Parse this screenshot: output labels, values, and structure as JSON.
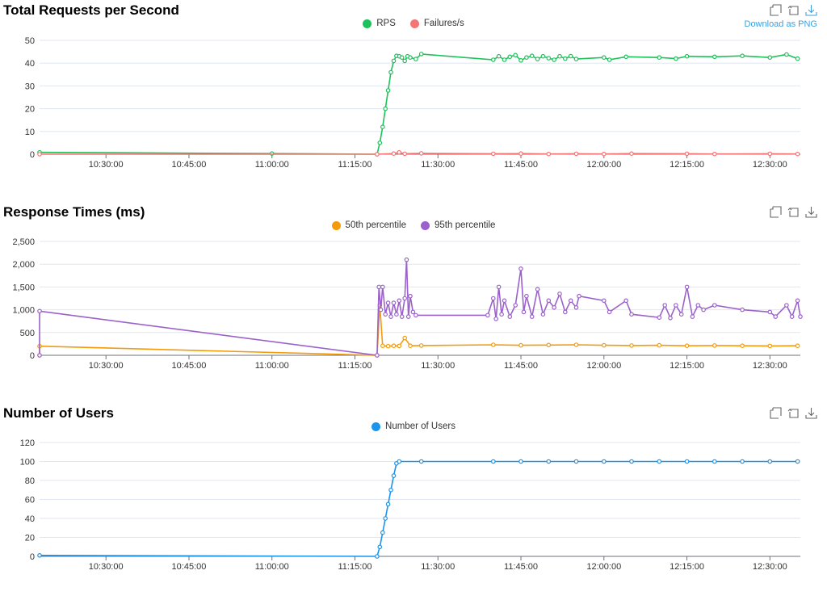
{
  "charts": [
    {
      "title": "Total Requests per Second",
      "download_label": "Download as PNG"
    },
    {
      "title": "Response Times (ms)"
    },
    {
      "title": "Number of Users"
    }
  ],
  "toolbox_icons": [
    "zoom-icon",
    "restore-icon",
    "download-icon"
  ],
  "chart_data": [
    {
      "type": "line",
      "title": "Total Requests per Second",
      "x_ticks": [
        "10:30:00",
        "10:45:00",
        "11:00:00",
        "11:15:00",
        "11:30:00",
        "11:45:00",
        "12:00:00",
        "12:15:00",
        "12:30:00"
      ],
      "y_ticks": [
        "0",
        "10",
        "20",
        "30",
        "40",
        "50"
      ],
      "ylim": [
        0,
        50
      ],
      "xlim": [
        "10:18:00",
        "12:35:30"
      ],
      "grid": true,
      "legend_position": "top-center",
      "series": [
        {
          "name": "RPS",
          "color": "#1dc25a",
          "points": [
            [
              "10:18:00",
              0.8
            ],
            [
              "11:00:00",
              0.3
            ],
            [
              "11:19:00",
              0
            ],
            [
              "11:19:30",
              5
            ],
            [
              "11:20:00",
              12
            ],
            [
              "11:20:30",
              20
            ],
            [
              "11:21:00",
              28
            ],
            [
              "11:21:30",
              36
            ],
            [
              "11:22:00",
              41
            ],
            [
              "11:22:30",
              43.2
            ],
            [
              "11:23:00",
              43
            ],
            [
              "11:23:30",
              42.5
            ],
            [
              "11:24:00",
              41
            ],
            [
              "11:24:30",
              43
            ],
            [
              "11:25:00",
              42.5
            ],
            [
              "11:26:00",
              41.8
            ],
            [
              "11:27:00",
              44
            ],
            [
              "11:40:00",
              41.5
            ],
            [
              "11:41:00",
              43
            ],
            [
              "11:42:00",
              41.5
            ],
            [
              "11:43:00",
              42.8
            ],
            [
              "11:44:00",
              43.5
            ],
            [
              "11:45:00",
              41.2
            ],
            [
              "11:46:00",
              42.5
            ],
            [
              "11:47:00",
              43.2
            ],
            [
              "11:48:00",
              41.8
            ],
            [
              "11:49:00",
              43
            ],
            [
              "11:50:00",
              42.2
            ],
            [
              "11:51:00",
              41.5
            ],
            [
              "11:52:00",
              43
            ],
            [
              "11:53:00",
              42
            ],
            [
              "11:54:00",
              43.1
            ],
            [
              "11:55:00",
              41.8
            ],
            [
              "12:00:00",
              42.5
            ],
            [
              "12:01:00",
              41.5
            ],
            [
              "12:04:00",
              42.8
            ],
            [
              "12:10:00",
              42.5
            ],
            [
              "12:13:00",
              42
            ],
            [
              "12:15:00",
              43
            ],
            [
              "12:20:00",
              42.8
            ],
            [
              "12:25:00",
              43.2
            ],
            [
              "12:30:00",
              42.5
            ],
            [
              "12:33:00",
              43.8
            ],
            [
              "12:35:00",
              42
            ]
          ]
        },
        {
          "name": "Failures/s",
          "color": "#f77474",
          "points": [
            [
              "10:18:00",
              0
            ],
            [
              "11:19:00",
              0
            ],
            [
              "11:22:00",
              0.3
            ],
            [
              "11:23:00",
              0.8
            ],
            [
              "11:24:00",
              0.2
            ],
            [
              "11:27:00",
              0.4
            ],
            [
              "11:40:00",
              0.2
            ],
            [
              "11:45:00",
              0.3
            ],
            [
              "11:50:00",
              0.1
            ],
            [
              "11:55:00",
              0.2
            ],
            [
              "12:00:00",
              0.1
            ],
            [
              "12:05:00",
              0.3
            ],
            [
              "12:15:00",
              0.2
            ],
            [
              "12:20:00",
              0.1
            ],
            [
              "12:30:00",
              0.2
            ],
            [
              "12:35:00",
              0.1
            ]
          ]
        }
      ]
    },
    {
      "type": "line",
      "title": "Response Times (ms)",
      "x_ticks": [
        "10:30:00",
        "10:45:00",
        "11:00:00",
        "11:15:00",
        "11:30:00",
        "11:45:00",
        "12:00:00",
        "12:15:00",
        "12:30:00"
      ],
      "y_ticks": [
        "0",
        "500",
        "1,000",
        "1,500",
        "2,000",
        "2,500"
      ],
      "ylim": [
        0,
        2500
      ],
      "xlim": [
        "10:18:00",
        "12:35:30"
      ],
      "grid": true,
      "legend_position": "top-center",
      "series": [
        {
          "name": "50th percentile",
          "color": "#f59b0b",
          "points": [
            [
              "10:18:00",
              0
            ],
            [
              "10:18:00",
              200
            ],
            [
              "11:19:00",
              0
            ],
            [
              "11:19:30",
              1100
            ],
            [
              "11:20:00",
              210
            ],
            [
              "11:21:00",
              200
            ],
            [
              "11:22:00",
              210
            ],
            [
              "11:23:00",
              205
            ],
            [
              "11:24:00",
              380
            ],
            [
              "11:25:00",
              210
            ],
            [
              "11:27:00",
              215
            ],
            [
              "11:40:00",
              230
            ],
            [
              "11:45:00",
              220
            ],
            [
              "11:50:00",
              225
            ],
            [
              "11:55:00",
              230
            ],
            [
              "12:00:00",
              220
            ],
            [
              "12:05:00",
              215
            ],
            [
              "12:10:00",
              220
            ],
            [
              "12:15:00",
              210
            ],
            [
              "12:20:00",
              215
            ],
            [
              "12:25:00",
              210
            ],
            [
              "12:30:00",
              205
            ],
            [
              "12:35:00",
              210
            ]
          ]
        },
        {
          "name": "95th percentile",
          "color": "#9b62cb",
          "points": [
            [
              "10:18:00",
              0
            ],
            [
              "10:18:00",
              970
            ],
            [
              "11:19:00",
              0
            ],
            [
              "11:19:20",
              1500
            ],
            [
              "11:19:40",
              1000
            ],
            [
              "11:20:00",
              1500
            ],
            [
              "11:20:30",
              900
            ],
            [
              "11:21:00",
              1150
            ],
            [
              "11:21:30",
              850
            ],
            [
              "11:22:00",
              1150
            ],
            [
              "11:22:30",
              900
            ],
            [
              "11:23:00",
              1200
            ],
            [
              "11:23:30",
              850
            ],
            [
              "11:24:00",
              1250
            ],
            [
              "11:24:20",
              2100
            ],
            [
              "11:24:40",
              850
            ],
            [
              "11:25:00",
              1300
            ],
            [
              "11:25:30",
              950
            ],
            [
              "11:26:00",
              880
            ],
            [
              "11:39:00",
              880
            ],
            [
              "11:40:00",
              1250
            ],
            [
              "11:40:30",
              800
            ],
            [
              "11:41:00",
              1500
            ],
            [
              "11:41:30",
              900
            ],
            [
              "11:42:00",
              1200
            ],
            [
              "11:43:00",
              850
            ],
            [
              "11:44:00",
              1100
            ],
            [
              "11:45:00",
              1900
            ],
            [
              "11:45:30",
              950
            ],
            [
              "11:46:00",
              1300
            ],
            [
              "11:47:00",
              850
            ],
            [
              "11:48:00",
              1450
            ],
            [
              "11:49:00",
              900
            ],
            [
              "11:50:00",
              1200
            ],
            [
              "11:51:00",
              1050
            ],
            [
              "11:52:00",
              1350
            ],
            [
              "11:53:00",
              950
            ],
            [
              "11:54:00",
              1200
            ],
            [
              "11:55:00",
              1050
            ],
            [
              "11:55:30",
              1300
            ],
            [
              "12:00:00",
              1200
            ],
            [
              "12:01:00",
              950
            ],
            [
              "12:04:00",
              1200
            ],
            [
              "12:05:00",
              900
            ],
            [
              "12:10:00",
              830
            ],
            [
              "12:11:00",
              1100
            ],
            [
              "12:12:00",
              820
            ],
            [
              "12:13:00",
              1100
            ],
            [
              "12:14:00",
              900
            ],
            [
              "12:15:00",
              1500
            ],
            [
              "12:16:00",
              850
            ],
            [
              "12:17:00",
              1100
            ],
            [
              "12:18:00",
              1000
            ],
            [
              "12:20:00",
              1100
            ],
            [
              "12:25:00",
              1000
            ],
            [
              "12:30:00",
              950
            ],
            [
              "12:31:00",
              850
            ],
            [
              "12:33:00",
              1100
            ],
            [
              "12:34:00",
              850
            ],
            [
              "12:35:00",
              1200
            ],
            [
              "12:35:30",
              850
            ]
          ]
        }
      ]
    },
    {
      "type": "line",
      "title": "Number of Users",
      "x_ticks": [
        "10:30:00",
        "10:45:00",
        "11:00:00",
        "11:15:00",
        "11:30:00",
        "11:45:00",
        "12:00:00",
        "12:15:00",
        "12:30:00"
      ],
      "y_ticks": [
        "0",
        "20",
        "40",
        "60",
        "80",
        "100",
        "120"
      ],
      "ylim": [
        0,
        120
      ],
      "xlim": [
        "10:18:00",
        "12:35:30"
      ],
      "grid": true,
      "legend_position": "top-center",
      "series": [
        {
          "name": "Number of Users",
          "color": "#1a94ec",
          "points": [
            [
              "10:18:00",
              1
            ],
            [
              "11:19:00",
              0
            ],
            [
              "11:19:30",
              10
            ],
            [
              "11:20:00",
              25
            ],
            [
              "11:20:30",
              40
            ],
            [
              "11:21:00",
              55
            ],
            [
              "11:21:30",
              70
            ],
            [
              "11:22:00",
              85
            ],
            [
              "11:22:30",
              98
            ],
            [
              "11:23:00",
              100
            ],
            [
              "11:27:00",
              100
            ],
            [
              "11:40:00",
              100
            ],
            [
              "11:45:00",
              100
            ],
            [
              "11:50:00",
              100
            ],
            [
              "11:55:00",
              100
            ],
            [
              "12:00:00",
              100
            ],
            [
              "12:05:00",
              100
            ],
            [
              "12:10:00",
              100
            ],
            [
              "12:15:00",
              100
            ],
            [
              "12:20:00",
              100
            ],
            [
              "12:25:00",
              100
            ],
            [
              "12:30:00",
              100
            ],
            [
              "12:35:00",
              100
            ]
          ]
        }
      ]
    }
  ]
}
